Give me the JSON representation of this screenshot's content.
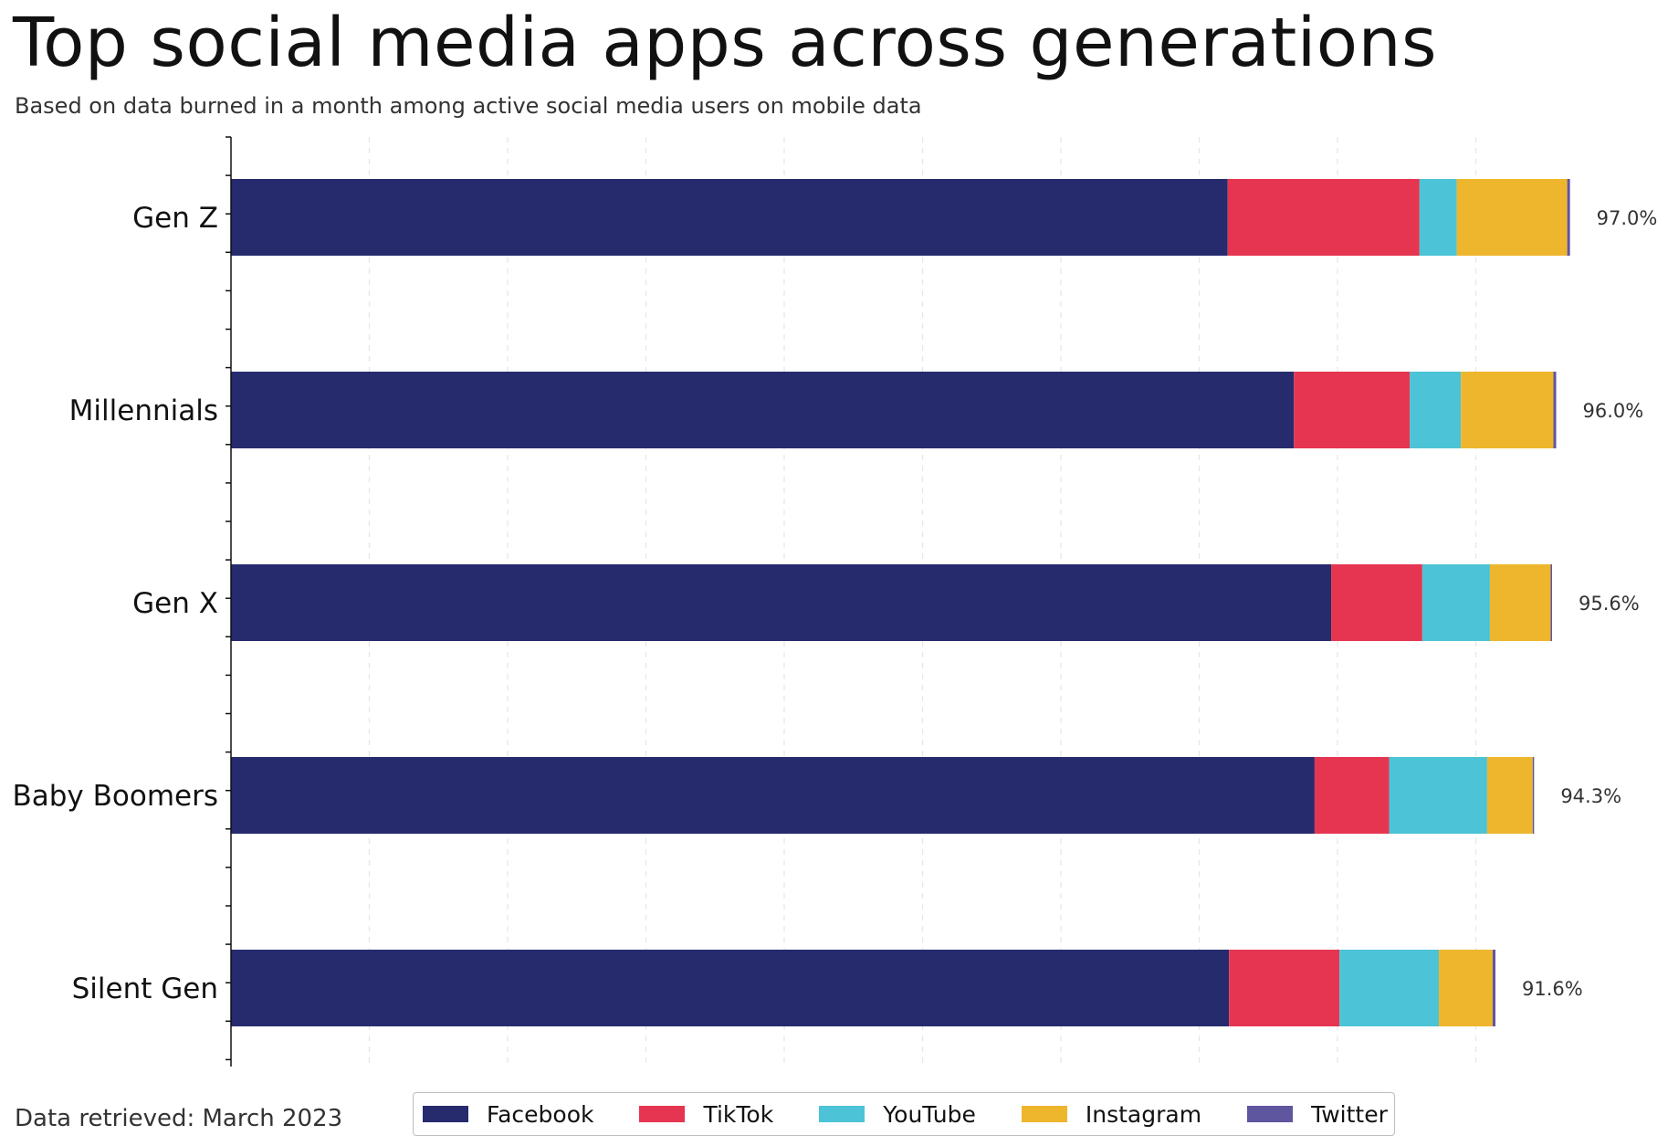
{
  "title": "Top social media apps across generations",
  "subtitle": "Based on data burned in a month among active social media users on mobile data",
  "footnote": "Data retrieved: March 2023",
  "chart_data": {
    "type": "bar",
    "orientation": "horizontal",
    "stacked": true,
    "categories": [
      "Gen Z",
      "Millennials",
      "Gen X",
      "Baby Boomers",
      "Silent Gen"
    ],
    "series": [
      {
        "name": "Facebook",
        "color": "#262b6e",
        "values": [
          72.2,
          77.0,
          79.7,
          78.5,
          72.3
        ]
      },
      {
        "name": "TikTok",
        "color": "#e63551",
        "values": [
          13.9,
          8.4,
          6.6,
          5.4,
          8.0
        ]
      },
      {
        "name": "YouTube",
        "color": "#4cc3d6",
        "values": [
          2.7,
          3.7,
          4.9,
          7.1,
          7.2
        ]
      },
      {
        "name": "Instagram",
        "color": "#eeb62d",
        "values": [
          8.0,
          6.7,
          4.4,
          3.3,
          3.9
        ]
      },
      {
        "name": "Twitter",
        "color": "#5f56a0",
        "values": [
          0.2,
          0.2,
          0.1,
          0.1,
          0.2
        ]
      }
    ],
    "totals": [
      "97.0%",
      "96.0%",
      "95.6%",
      "94.3%",
      "91.6%"
    ],
    "xlim": [
      0,
      100
    ],
    "grid": "vertical dashed",
    "legend_position": "bottom"
  }
}
